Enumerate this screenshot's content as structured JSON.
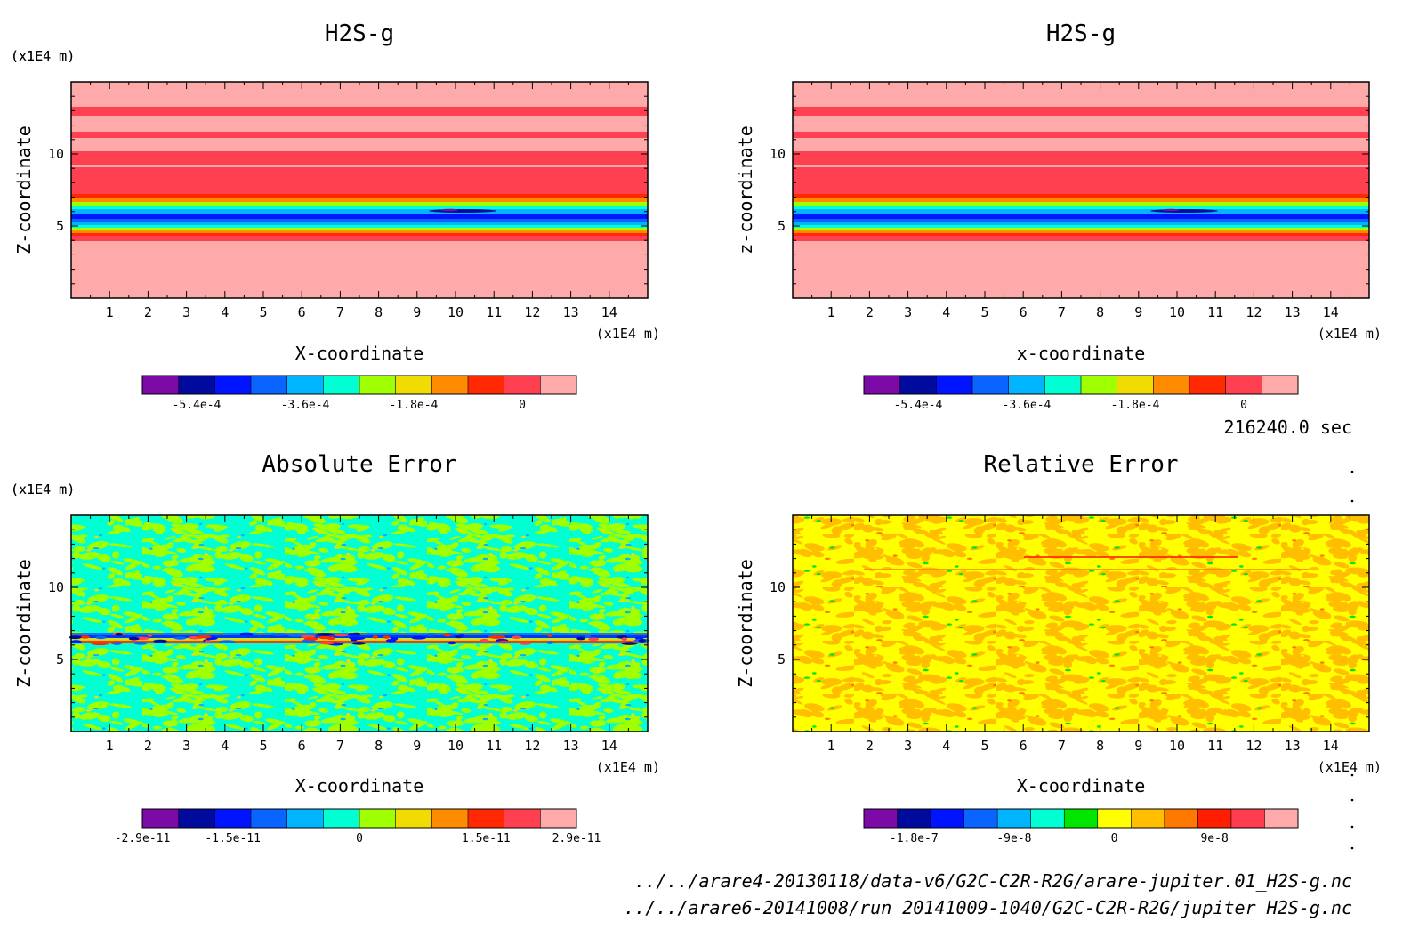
{
  "timestamp": "216240.0 sec",
  "footer": {
    "file1": "../../arare4-20130118/data-v6/G2C-C2R-R2G/arare-jupiter.01_H2S-g.nc",
    "file2": "../../arare6-20141008/run_20141009-1040/G2C-C2R-R2G/jupiter_H2S-g.nc"
  },
  "colors": {
    "scale12": [
      "#7b0aa7",
      "#000a9c",
      "#0014ff",
      "#0a64ff",
      "#00b4ff",
      "#00ffd2",
      "#a0ff00",
      "#f0dc00",
      "#ff8c00",
      "#ff2800",
      "#ff4050",
      "#ffaaaa"
    ],
    "scale13": [
      "#7b0aa7",
      "#000a9c",
      "#0014ff",
      "#0a64ff",
      "#00b4ff",
      "#00ffd2",
      "#00e600",
      "#ffff00",
      "#ffbe00",
      "#ff7800",
      "#ff1e00",
      "#ff3c50",
      "#ffaaaa"
    ],
    "absnoise": [
      "#00ffd2",
      "#a0ff00"
    ],
    "relnoise": [
      "#ffff00",
      "#ffbe00"
    ]
  },
  "chart_data": [
    {
      "type": "heatmap",
      "title": "H2S-g",
      "xlabel": "X-coordinate",
      "ylabel": "Z-coordinate",
      "x_unit": "(x1E4 m)",
      "y_unit": "(x1E4 m)",
      "xlim": [
        0,
        15
      ],
      "ylim": [
        0,
        15
      ],
      "xticks": [
        "1",
        "2",
        "3",
        "4",
        "5",
        "6",
        "7",
        "8",
        "9",
        "10",
        "11",
        "12",
        "13",
        "14"
      ],
      "yticks": [
        "5",
        "10"
      ],
      "colorbar": {
        "ticks": [
          "-5.4e-4",
          "-3.6e-4",
          "-1.8e-4",
          "0"
        ],
        "colors": "scale12"
      }
    },
    {
      "type": "heatmap",
      "title": "H2S-g",
      "xlabel": "x-coordinate",
      "ylabel": "z-coordinate",
      "x_unit": "(x1E4 m)",
      "y_unit": "(x1E4 m)",
      "xlim": [
        0,
        15
      ],
      "ylim": [
        0,
        15
      ],
      "xticks": [
        "1",
        "2",
        "3",
        "4",
        "5",
        "6",
        "7",
        "8",
        "9",
        "10",
        "11",
        "12",
        "13",
        "14"
      ],
      "yticks": [
        "5",
        "10"
      ],
      "colorbar": {
        "ticks": [
          "-5.4e-4",
          "-3.6e-4",
          "-1.8e-4",
          "0"
        ],
        "colors": "scale12"
      }
    },
    {
      "type": "heatmap",
      "title": "Absolute Error",
      "xlabel": "X-coordinate",
      "ylabel": "Z-coordinate",
      "x_unit": "(x1E4 m)",
      "y_unit": "(x1E4 m)",
      "xlim": [
        0,
        15
      ],
      "ylim": [
        0,
        15
      ],
      "xticks": [
        "1",
        "2",
        "3",
        "4",
        "5",
        "6",
        "7",
        "8",
        "9",
        "10",
        "11",
        "12",
        "13",
        "14"
      ],
      "yticks": [
        "5",
        "10"
      ],
      "colorbar": {
        "ticks": [
          "-2.9e-11",
          "-1.5e-11",
          "0",
          "1.5e-11",
          "2.9e-11"
        ],
        "colors": "scale12"
      }
    },
    {
      "type": "heatmap",
      "title": "Relative Error",
      "xlabel": "X-coordinate",
      "ylabel": "Z-coordinate",
      "x_unit": "(x1E4 m)",
      "y_unit": "(x1E4 m)",
      "xlim": [
        0,
        15
      ],
      "ylim": [
        0,
        15
      ],
      "xticks": [
        "1",
        "2",
        "3",
        "4",
        "5",
        "6",
        "7",
        "8",
        "9",
        "10",
        "11",
        "12",
        "13",
        "14"
      ],
      "yticks": [
        "5",
        "10"
      ],
      "colorbar": {
        "ticks": [
          "-1.8e-7",
          "-9e-8",
          "0",
          "9e-8"
        ],
        "colors": "scale13"
      }
    }
  ]
}
